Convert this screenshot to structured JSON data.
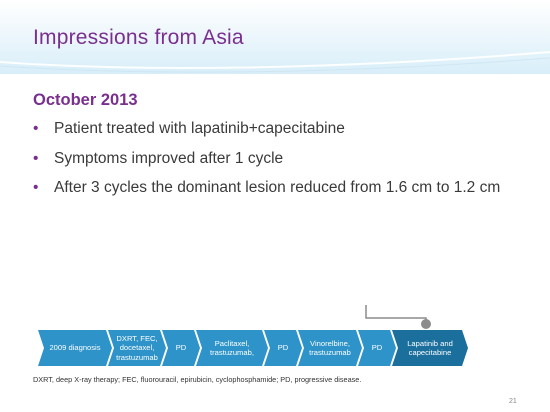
{
  "slide": {
    "title": "Impressions from Asia",
    "subheading": "October 2013",
    "bullets": [
      "Patient treated with lapatinib+capecitabine",
      "Symptoms improved after 1 cycle",
      "After 3 cycles the dominant lesion reduced from 1.6 cm to 1.2 cm"
    ],
    "timeline": [
      {
        "label": "2009 diagnosis"
      },
      {
        "label": "DXRT, FEC, docetaxel, trastuzumab"
      },
      {
        "label": "PD"
      },
      {
        "label": "Paclitaxel, trastuzumab,"
      },
      {
        "label": "PD"
      },
      {
        "label": "Vinorelbine, trastuzumab"
      },
      {
        "label": "PD"
      },
      {
        "label": "Lapatinib and capecitabine"
      }
    ],
    "footnote": "DXRT, deep X-ray therapy; FEC, fluorouracil, epirubicin, cyclophosphamide; PD, progressive disease.",
    "page_number": "21"
  },
  "colors": {
    "title": "#7a2f8f",
    "timeline_fill": "#2e93c8",
    "timeline_active": "#1a6f9c",
    "marker": "#8c8c8c"
  }
}
